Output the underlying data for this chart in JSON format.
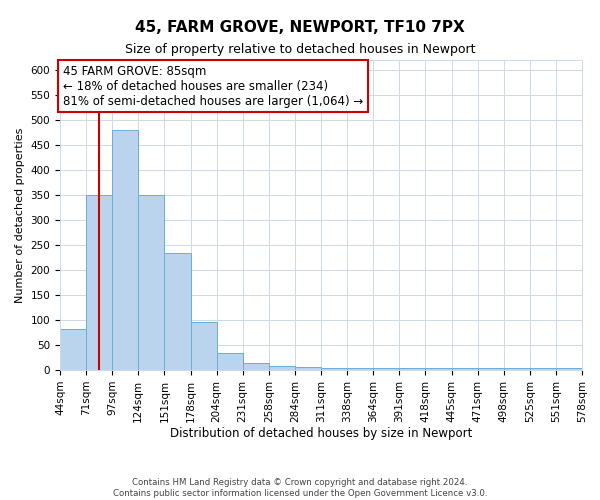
{
  "title": "45, FARM GROVE, NEWPORT, TF10 7PX",
  "subtitle": "Size of property relative to detached houses in Newport",
  "xlabel": "Distribution of detached houses by size in Newport",
  "ylabel": "Number of detached properties",
  "footer_line1": "Contains HM Land Registry data © Crown copyright and database right 2024.",
  "footer_line2": "Contains public sector information licensed under the Open Government Licence v3.0.",
  "annotation_title": "45 FARM GROVE: 85sqm",
  "annotation_line1": "← 18% of detached houses are smaller (234)",
  "annotation_line2": "81% of semi-detached houses are larger (1,064) →",
  "bar_values": [
    82,
    350,
    480,
    350,
    235,
    97,
    35,
    15,
    8,
    7,
    4,
    4,
    4,
    4,
    4,
    4,
    4,
    4,
    4,
    4
  ],
  "tick_labels": [
    "44sqm",
    "71sqm",
    "97sqm",
    "124sqm",
    "151sqm",
    "178sqm",
    "204sqm",
    "231sqm",
    "258sqm",
    "284sqm",
    "311sqm",
    "338sqm",
    "364sqm",
    "391sqm",
    "418sqm",
    "445sqm",
    "471sqm",
    "498sqm",
    "525sqm",
    "551sqm",
    "578sqm"
  ],
  "bar_color": "#bad4ee",
  "bar_edge_color": "#6aaed6",
  "red_line_x": 1.5,
  "ylim": [
    0,
    620
  ],
  "yticks": [
    0,
    50,
    100,
    150,
    200,
    250,
    300,
    350,
    400,
    450,
    500,
    550,
    600
  ],
  "background_color": "#ffffff",
  "grid_color": "#ccd9ea",
  "annotation_box_color": "#ffffff",
  "annotation_box_edge_color": "#cc0000",
  "red_line_color": "#cc0000",
  "title_fontsize": 11,
  "subtitle_fontsize": 9,
  "axis_label_fontsize": 8.5,
  "tick_fontsize": 7.5,
  "annotation_fontsize": 8.5,
  "ylabel_fontsize": 8
}
